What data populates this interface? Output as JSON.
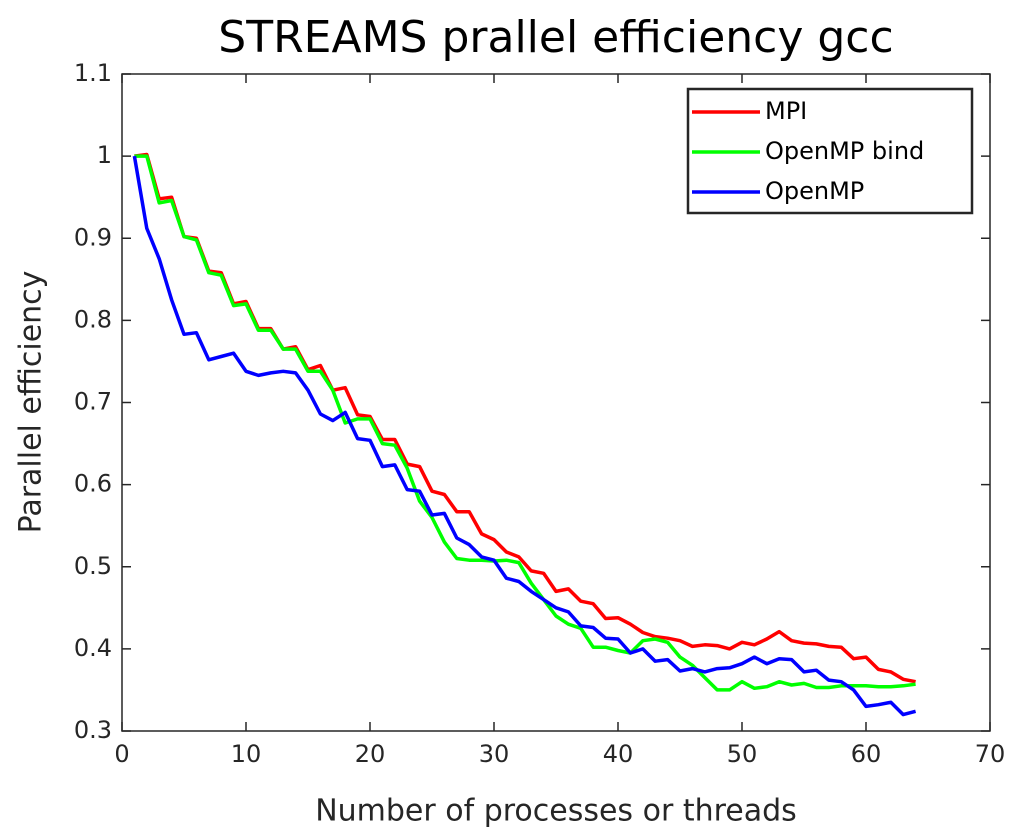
{
  "chart_data": {
    "type": "line",
    "title": "STREAMS prallel efficiency gcc",
    "x_label": "Number of processes or threads",
    "y_label": "Parallel efficiency",
    "x": [
      1,
      2,
      3,
      4,
      5,
      6,
      7,
      8,
      9,
      10,
      11,
      12,
      13,
      14,
      15,
      16,
      17,
      18,
      19,
      20,
      21,
      22,
      23,
      24,
      25,
      26,
      27,
      28,
      29,
      30,
      31,
      32,
      33,
      34,
      35,
      36,
      37,
      38,
      39,
      40,
      41,
      42,
      43,
      44,
      45,
      46,
      47,
      48,
      49,
      50,
      51,
      52,
      53,
      54,
      55,
      56,
      57,
      58,
      59,
      60,
      61,
      62,
      63,
      64
    ],
    "series": [
      {
        "name": "MPI",
        "color": "#ff0000",
        "values": [
          1.0,
          1.002,
          0.948,
          0.95,
          0.902,
          0.9,
          0.86,
          0.858,
          0.82,
          0.823,
          0.79,
          0.79,
          0.765,
          0.768,
          0.74,
          0.745,
          0.715,
          0.718,
          0.685,
          0.683,
          0.655,
          0.655,
          0.625,
          0.622,
          0.592,
          0.588,
          0.567,
          0.567,
          0.54,
          0.533,
          0.518,
          0.512,
          0.495,
          0.492,
          0.47,
          0.473,
          0.458,
          0.455,
          0.437,
          0.438,
          0.43,
          0.42,
          0.415,
          0.413,
          0.41,
          0.403,
          0.405,
          0.404,
          0.4,
          0.408,
          0.405,
          0.412,
          0.421,
          0.41,
          0.407,
          0.406,
          0.403,
          0.402,
          0.388,
          0.39,
          0.375,
          0.372,
          0.363,
          0.36
        ]
      },
      {
        "name": "OpenMP bind",
        "color": "#00ff00",
        "values": [
          1.0,
          1.0,
          0.943,
          0.946,
          0.902,
          0.898,
          0.858,
          0.855,
          0.818,
          0.82,
          0.788,
          0.788,
          0.765,
          0.765,
          0.738,
          0.738,
          0.715,
          0.675,
          0.68,
          0.68,
          0.65,
          0.648,
          0.62,
          0.58,
          0.56,
          0.53,
          0.51,
          0.508,
          0.508,
          0.507,
          0.508,
          0.505,
          0.48,
          0.46,
          0.44,
          0.43,
          0.425,
          0.402,
          0.402,
          0.398,
          0.395,
          0.41,
          0.412,
          0.408,
          0.39,
          0.38,
          0.365,
          0.35,
          0.35,
          0.36,
          0.352,
          0.354,
          0.36,
          0.356,
          0.358,
          0.353,
          0.353,
          0.355,
          0.355,
          0.355,
          0.354,
          0.354,
          0.355,
          0.357
        ]
      },
      {
        "name": "OpenMP",
        "color": "#0000ff",
        "values": [
          1.0,
          0.912,
          0.875,
          0.825,
          0.783,
          0.785,
          0.752,
          0.756,
          0.76,
          0.738,
          0.733,
          0.736,
          0.738,
          0.736,
          0.715,
          0.686,
          0.678,
          0.688,
          0.656,
          0.654,
          0.622,
          0.624,
          0.594,
          0.592,
          0.563,
          0.565,
          0.535,
          0.527,
          0.512,
          0.508,
          0.486,
          0.482,
          0.47,
          0.46,
          0.45,
          0.445,
          0.428,
          0.426,
          0.413,
          0.412,
          0.395,
          0.4,
          0.385,
          0.387,
          0.373,
          0.376,
          0.372,
          0.376,
          0.377,
          0.382,
          0.39,
          0.382,
          0.388,
          0.387,
          0.372,
          0.374,
          0.362,
          0.36,
          0.35,
          0.33,
          0.332,
          0.335,
          0.32,
          0.324
        ]
      }
    ],
    "xlim": [
      0,
      70
    ],
    "xticks": [
      0,
      10,
      20,
      30,
      40,
      50,
      60,
      70
    ],
    "ylim": [
      0.3,
      1.1
    ],
    "yticks": [
      0.3,
      0.4,
      0.5,
      0.6,
      0.7,
      0.8,
      0.9,
      1,
      1.1
    ],
    "legend": "upper right",
    "grid": false
  }
}
